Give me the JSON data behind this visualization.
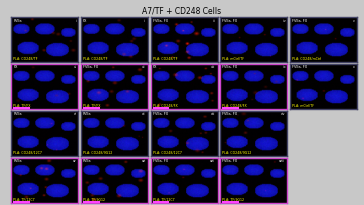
{
  "title": "A7/TF + CD248 Cells",
  "title_fontsize": 5.5,
  "figure_bg": "#c8c8c8",
  "grid_rows": 4,
  "grid_cols": 5,
  "panels": [
    {
      "row": 0,
      "col": 0,
      "top_label": "FVIIa",
      "bottom_label": "PLA: CD248/TF",
      "has_bar": false,
      "n_label": "i",
      "red_level": 0.5,
      "has_magenta_border": false
    },
    {
      "row": 0,
      "col": 1,
      "top_label": "FX",
      "bottom_label": "PLA: CD248/TF",
      "has_bar": false,
      "n_label": "ii",
      "red_level": 0.4,
      "has_magenta_border": false
    },
    {
      "row": 0,
      "col": 2,
      "top_label": "FVIIa, FX",
      "bottom_label": "PLA: CD248/TF",
      "has_bar": false,
      "n_label": "iii",
      "red_level": 0.9,
      "has_magenta_border": false
    },
    {
      "row": 0,
      "col": 3,
      "top_label": "FVIIa, FX",
      "bottom_label": "PLA: mCtrl/TF",
      "has_bar": false,
      "n_label": "iv",
      "red_level": 0.05,
      "has_magenta_border": false
    },
    {
      "row": 0,
      "col": 4,
      "top_label": "FVIIa, FX",
      "bottom_label": "PLA: CD248/mCtrl",
      "has_bar": false,
      "n_label": "v",
      "red_level": 0.05,
      "has_magenta_border": false
    },
    {
      "row": 1,
      "col": 0,
      "top_label": "FX",
      "bottom_label": "PLA: TF/FX",
      "has_bar": true,
      "n_label": "vi",
      "red_level": 0.3,
      "has_magenta_border": true
    },
    {
      "row": 1,
      "col": 1,
      "top_label": "FVIIa, FX",
      "bottom_label": "PLA: TF/FX",
      "has_bar": true,
      "n_label": "vii",
      "red_level": 0.6,
      "has_magenta_border": true
    },
    {
      "row": 1,
      "col": 2,
      "top_label": "FX",
      "bottom_label": "PLA: CD248/FX",
      "has_bar": true,
      "n_label": "viii",
      "red_level": 0.7,
      "has_magenta_border": true
    },
    {
      "row": 1,
      "col": 3,
      "top_label": "FVIIa, FX",
      "bottom_label": "PLA: CD248/FX",
      "has_bar": true,
      "n_label": "ix",
      "red_level": 0.35,
      "has_magenta_border": true
    },
    {
      "row": 1,
      "col": 4,
      "top_label": "FVIIa, FX",
      "bottom_label": "PLA: mCtrl/TF",
      "has_bar": false,
      "n_label": "x",
      "red_level": 0.05,
      "has_magenta_border": false
    },
    {
      "row": 2,
      "col": 0,
      "top_label": "FVIIa",
      "bottom_label": "PLA: CD248/12C7",
      "has_bar": false,
      "n_label": "xi",
      "red_level": 0.08,
      "has_magenta_border": false
    },
    {
      "row": 2,
      "col": 1,
      "top_label": "FVIIa",
      "bottom_label": "PLA: CD248/9G12",
      "has_bar": false,
      "n_label": "xii",
      "red_level": 0.08,
      "has_magenta_border": false
    },
    {
      "row": 2,
      "col": 2,
      "top_label": "FVIIa, FX",
      "bottom_label": "PLA: CD248/12C7",
      "has_bar": false,
      "n_label": "xiii",
      "red_level": 0.55,
      "has_magenta_border": false
    },
    {
      "row": 2,
      "col": 3,
      "top_label": "FVIIa, FX",
      "bottom_label": "PLA: CD248/9G12",
      "has_bar": false,
      "n_label": "xiv",
      "red_level": 0.4,
      "has_magenta_border": false
    },
    {
      "row": 3,
      "col": 0,
      "top_label": "FVIIa",
      "bottom_label": "PLA: TF/12C7",
      "has_bar": true,
      "n_label": "xv",
      "red_level": 0.7,
      "has_magenta_border": true
    },
    {
      "row": 3,
      "col": 1,
      "top_label": "FVIIa",
      "bottom_label": "PLA: TF/9G12",
      "has_bar": true,
      "n_label": "xvi",
      "red_level": 0.65,
      "has_magenta_border": true
    },
    {
      "row": 3,
      "col": 2,
      "top_label": "FVIIa, FX",
      "bottom_label": "PLA: TF/12C7",
      "has_bar": true,
      "n_label": "xvii",
      "red_level": 0.1,
      "has_magenta_border": true
    },
    {
      "row": 3,
      "col": 3,
      "top_label": "FVIIa, FX",
      "bottom_label": "PLA: TF/9G12",
      "has_bar": true,
      "n_label": "xviii",
      "red_level": 0.1,
      "has_magenta_border": true
    }
  ]
}
